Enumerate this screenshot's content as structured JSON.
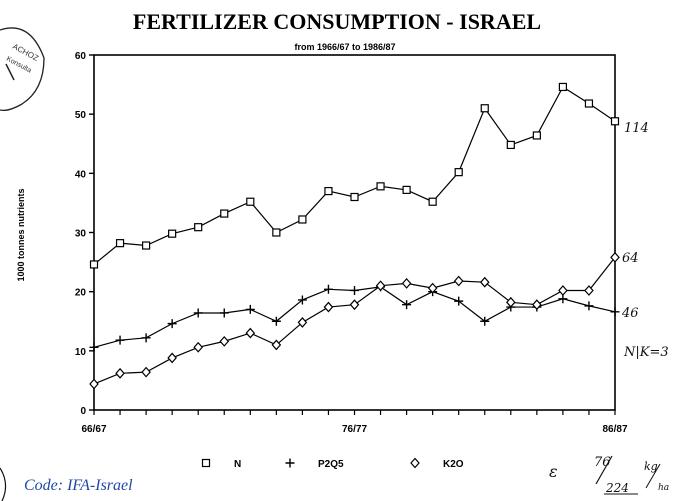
{
  "chart_data": {
    "type": "line",
    "title": "FERTILIZER CONSUMPTION  -  ISRAEL",
    "subtitle": "from 1966/67 to 1986/87",
    "ylabel": "1000 tonnes nutrients",
    "xlabel": "",
    "ylim": [
      0,
      60
    ],
    "yticks": [
      0,
      10,
      20,
      30,
      40,
      50,
      60
    ],
    "x_tick_labels": [
      "66/67",
      "76/77",
      "86/87"
    ],
    "x_tick_index": [
      0,
      10,
      20
    ],
    "grid": false,
    "series": [
      {
        "name": "N",
        "marker": "square",
        "values": [
          24.6,
          28.2,
          27.8,
          29.8,
          30.9,
          33.2,
          35.2,
          30.0,
          32.2,
          37.0,
          36.0,
          37.8,
          37.2,
          35.2,
          40.2,
          51.0,
          44.8,
          46.4,
          54.6,
          51.8,
          48.8
        ]
      },
      {
        "name": "P2Q5",
        "marker": "plus",
        "values": [
          10.6,
          11.8,
          12.2,
          14.6,
          16.4,
          16.4,
          17.0,
          15.0,
          18.6,
          20.4,
          20.2,
          20.8,
          17.8,
          20.0,
          18.4,
          15.0,
          17.4,
          17.4,
          18.8,
          17.6,
          16.6
        ]
      },
      {
        "name": "K2O",
        "marker": "diamond",
        "values": [
          4.4,
          6.2,
          6.4,
          8.8,
          10.6,
          11.6,
          13.0,
          11.0,
          14.8,
          17.4,
          17.8,
          21.0,
          21.4,
          20.6,
          21.8,
          21.6,
          18.2,
          17.8,
          20.2,
          20.2,
          25.8
        ]
      }
    ]
  },
  "annotations": {
    "n_end": "114",
    "k2o_end": "64",
    "p2o5_end": "46",
    "npk_note": "N|K=3",
    "epsilon": "ε",
    "ratio_num": "76",
    "ratio_den": "224",
    "unit_num": "kg",
    "unit_den": "ha",
    "code": "Code: IFA-Israel",
    "stamp_lines": [
      "ACHOZ",
      "Konsulta"
    ]
  }
}
